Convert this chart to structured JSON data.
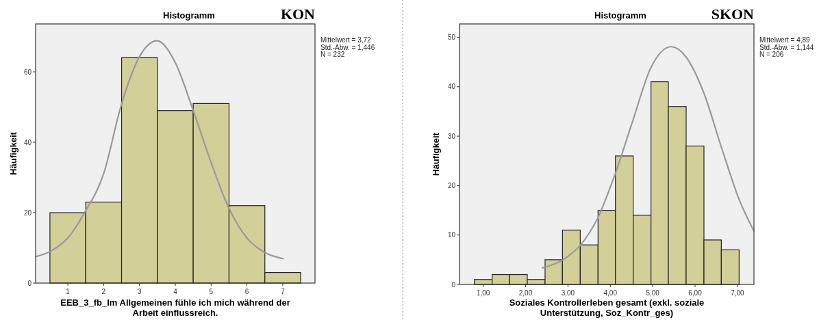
{
  "chart_data": [
    {
      "type": "histogram",
      "title": "Histogramm",
      "xlabel": "EEB_3_fb_Im Allgemeinen fühle ich mich während der Arbeit einflussreich.",
      "ylabel": "Häufigkeit",
      "annotations": [
        "KON",
        "Mittelwert = 3,72",
        "Std.-Abw. = 1,446",
        "N = 232"
      ],
      "xlim": [
        0.1,
        7.9
      ],
      "xticks": [
        1,
        2,
        3,
        4,
        5,
        6,
        7
      ],
      "ylim": [
        0,
        73.6
      ],
      "yticks": [
        0,
        20,
        40,
        60
      ],
      "grid": false,
      "series": [
        {
          "type": "histogram",
          "color": "#d3cf98",
          "bins": [
            0.5,
            1.5,
            2.5,
            3.5,
            4.5,
            5.5,
            6.5,
            7.5
          ],
          "values": [
            20,
            23,
            64,
            49,
            51,
            22,
            3
          ]
        },
        {
          "type": "line",
          "color": "#999999",
          "x": [
            0.1,
            0.51,
            1,
            1.46,
            2,
            2.49,
            3,
            3.49,
            3.99,
            4.5,
            4.98,
            5.49,
            6,
            6.5,
            7.03
          ],
          "values": [
            7.5,
            9,
            12.8,
            19.9,
            31.1,
            50.5,
            64.3,
            68.8,
            62.8,
            49,
            34.8,
            21.4,
            12.8,
            8.7,
            6.9
          ]
        }
      ]
    },
    {
      "type": "histogram",
      "title": "Histogramm",
      "xlabel": "Soziales Kontrollerleben gesamt (exkl. soziale Unterstützung, Soz_Kontr_ges)",
      "ylabel": "Häufigkeit",
      "annotations": [
        "SKON",
        "Mittelwert = 4,89",
        "Std.-Abw. = 1,144",
        "N = 206"
      ],
      "xlim": [
        0.44,
        7.39
      ],
      "xticks": [
        {
          "value": 1,
          "label": "1,00"
        },
        {
          "value": 2,
          "label": "2,00"
        },
        {
          "value": 3,
          "label": "3,00"
        },
        {
          "value": 4,
          "label": "4,00"
        },
        {
          "value": 5,
          "label": "5,00"
        },
        {
          "value": 6,
          "label": "6,00"
        },
        {
          "value": 7,
          "label": "7,00"
        }
      ],
      "ylim": [
        0,
        52.7
      ],
      "yticks": [
        0,
        10,
        20,
        30,
        40,
        50
      ],
      "grid": false,
      "series": [
        {
          "type": "histogram",
          "color": "#d3cf98",
          "bins": [
            0.79,
            1.21,
            1.62,
            2.04,
            2.46,
            2.87,
            3.29,
            3.71,
            4.12,
            4.54,
            4.96,
            5.37,
            5.79,
            6.21,
            6.62,
            7.04
          ],
          "values": [
            1,
            2,
            2,
            1,
            5,
            11,
            8,
            15,
            26,
            14,
            41,
            36,
            28,
            9,
            7
          ]
        },
        {
          "type": "line",
          "color": "#999999",
          "x": [
            2.38,
            2.86,
            3.29,
            3.7,
            4.12,
            4.53,
            4.95,
            5.44,
            5.78,
            6.2,
            6.62,
            7.04,
            7.39
          ],
          "values": [
            3.3,
            4.9,
            7.9,
            13.4,
            22.5,
            33.1,
            43.7,
            48.1,
            46.1,
            38.9,
            27.8,
            17.2,
            10.8
          ]
        }
      ]
    }
  ]
}
